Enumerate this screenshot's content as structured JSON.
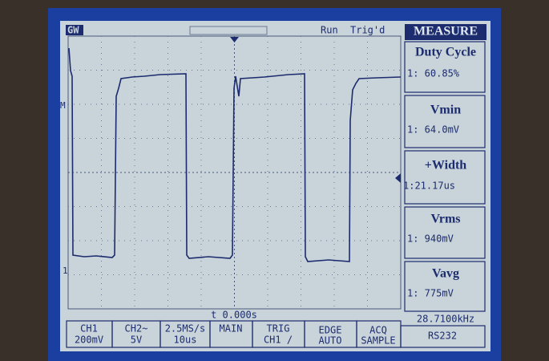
{
  "header": {
    "brand": "GW",
    "status": "Run",
    "trigger": "Trig'd",
    "menu_title": "MEASURE"
  },
  "markers": {
    "math": "M",
    "ch1": "1"
  },
  "measurements": [
    {
      "label": "Duty Cycle",
      "value": "1: 60.85%"
    },
    {
      "label": "Vmin",
      "value": "1: 64.0mV"
    },
    {
      "label": "+Width",
      "value": "1:21.17us"
    },
    {
      "label": "Vrms",
      "value": "1: 940mV"
    },
    {
      "label": "Vavg",
      "value": "1: 775mV"
    }
  ],
  "timebase": "t 0.000s",
  "frequency": "28.7100kHz",
  "status_bar": [
    {
      "line1": "CH1",
      "line2": "200mV"
    },
    {
      "line1": "CH2~",
      "line2": "5V"
    },
    {
      "line1": "2.5MS/s",
      "line2": "10us"
    },
    {
      "line1": "MAIN"
    },
    {
      "line1": "TRIG",
      "line2": "CH1 /"
    },
    {
      "line1": "EDGE",
      "line2": "AUTO"
    },
    {
      "line1": "ACQ",
      "line2": "SAMPLE"
    },
    {
      "line1": "RS232"
    }
  ]
}
